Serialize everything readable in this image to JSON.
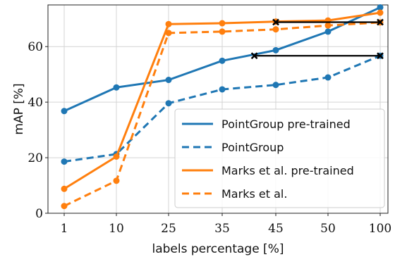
{
  "chart_data": {
    "type": "line",
    "xlabel": "labels percentage [%]",
    "ylabel": "mAP [%]",
    "categories": [
      "1",
      "10",
      "25",
      "35",
      "45",
      "50",
      "100"
    ],
    "ylim": [
      0,
      75
    ],
    "yticks": [
      "0",
      "20",
      "40",
      "60"
    ],
    "grid": true,
    "legend_position": "bottom-right",
    "series": [
      {
        "name": "PointGroup pre-trained",
        "color": "#1f77b4",
        "style": "solid",
        "values": [
          36.8,
          45.3,
          48.0,
          54.9,
          58.7,
          65.4,
          74.1
        ]
      },
      {
        "name": "PointGroup",
        "color": "#1f77b4",
        "style": "dashed",
        "values": [
          18.6,
          21.3,
          39.6,
          44.6,
          46.2,
          48.9,
          56.7
        ]
      },
      {
        "name": "Marks et al. pre-trained",
        "color": "#ff7f0e",
        "style": "solid",
        "values": [
          8.8,
          20.4,
          68.1,
          68.4,
          69.0,
          69.4,
          72.2
        ]
      },
      {
        "name": "Marks et al.",
        "color": "#ff7f0e",
        "style": "dashed",
        "values": [
          2.6,
          11.7,
          64.9,
          65.4,
          66.2,
          67.6,
          68.7
        ]
      }
    ],
    "annotations": [
      {
        "type": "horizontal-line",
        "color": "#000000",
        "x_from": 45,
        "x_to": 100,
        "y": 68.8,
        "marker": "x"
      },
      {
        "type": "horizontal-line",
        "color": "#000000",
        "x_from": 41,
        "x_to": 100,
        "y": 56.7,
        "marker": "x"
      }
    ]
  }
}
